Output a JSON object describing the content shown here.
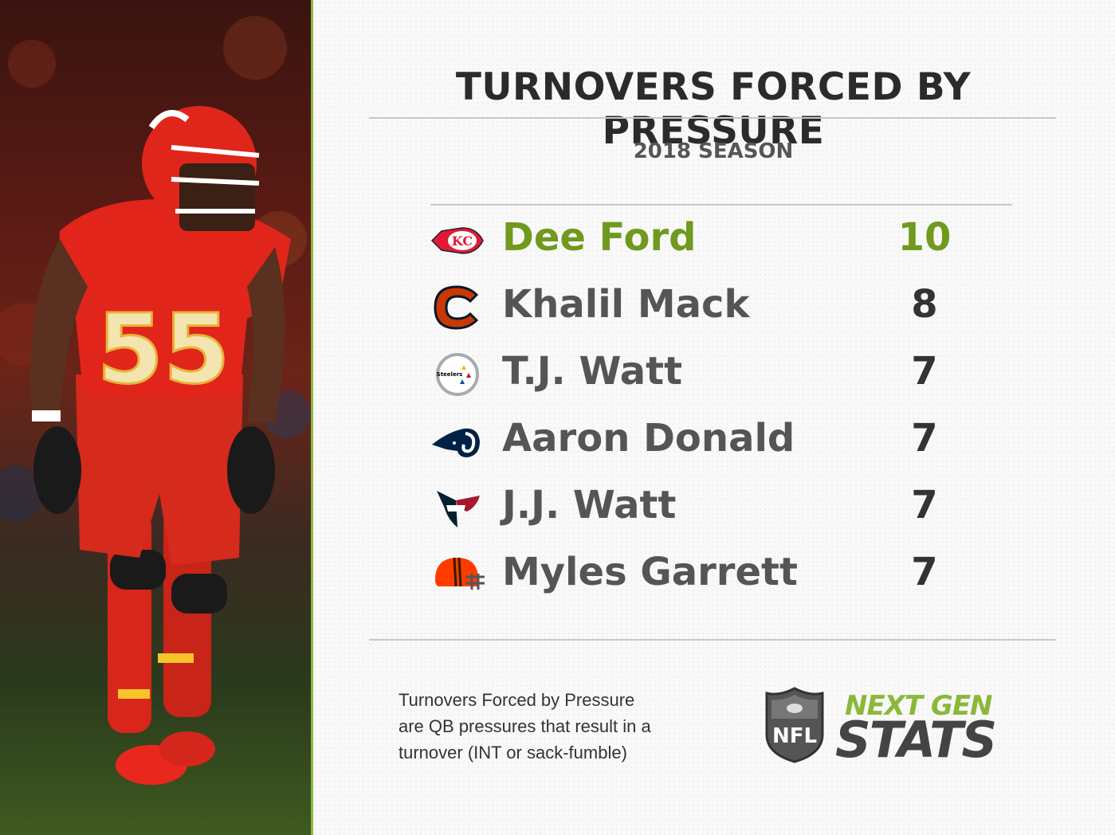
{
  "title": "TURNOVERS FORCED BY PRESSURE",
  "subtitle": "2018 SEASON",
  "rows": [
    {
      "team": "Kansas City Chiefs",
      "logo": "chiefs-logo-icon",
      "name": "Dee Ford",
      "value": "10",
      "highlight": true
    },
    {
      "team": "Chicago Bears",
      "logo": "bears-logo-icon",
      "name": "Khalil Mack",
      "value": "8",
      "highlight": false
    },
    {
      "team": "Pittsburgh Steelers",
      "logo": "steelers-logo-icon",
      "name": "T.J. Watt",
      "value": "7",
      "highlight": false
    },
    {
      "team": "Los Angeles Rams",
      "logo": "rams-logo-icon",
      "name": "Aaron Donald",
      "value": "7",
      "highlight": false
    },
    {
      "team": "Houston Texans",
      "logo": "texans-logo-icon",
      "name": "J.J. Watt",
      "value": "7",
      "highlight": false
    },
    {
      "team": "Cleveland Browns",
      "logo": "browns-logo-icon",
      "name": "Myles Garrett",
      "value": "7",
      "highlight": false
    }
  ],
  "footnote": {
    "line1": "Turnovers Forced by Pressure",
    "line2": "are QB pressures that result in a",
    "line3": "turnover (INT or sack-fumble)"
  },
  "branding": {
    "nfl": "NFL",
    "ngs_top": "NEXT GEN",
    "ngs_bottom": "STATS"
  },
  "photo": {
    "jersey_number": "55"
  },
  "colors": {
    "accent_green": "#8cb83a",
    "highlight_text": "#6f9a1e",
    "chiefs_red": "#e31837",
    "bears_orange": "#c83803",
    "bears_navy": "#0b162a",
    "steelers_gold": "#ffb612",
    "rams_navy": "#002244",
    "texans_red": "#a71930",
    "browns_orange": "#ff3c00"
  }
}
